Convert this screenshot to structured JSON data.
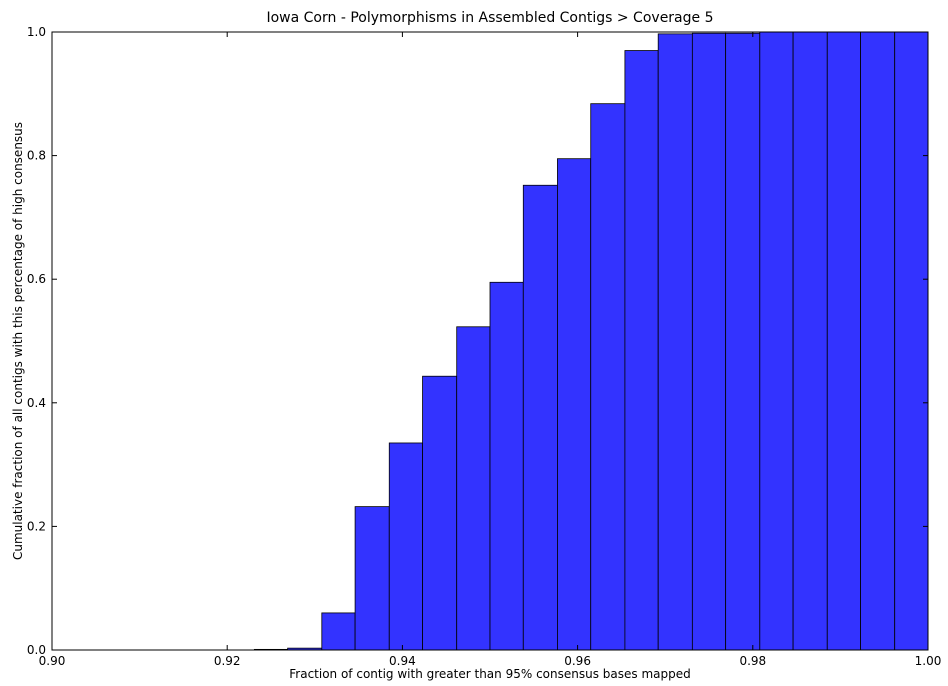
{
  "chart_data": {
    "type": "bar",
    "title": "Iowa Corn - Polymorphisms in Assembled Contigs > Coverage 5",
    "xlabel": "Fraction of contig with greater than 95% consensus bases mapped",
    "ylabel": "Cumulative fraction of all contigs with this percentage of high consensus",
    "xlim": [
      0.9,
      1.0
    ],
    "ylim": [
      0.0,
      1.0
    ],
    "xticks": [
      "0.90",
      "0.92",
      "0.94",
      "0.96",
      "0.98",
      "1.00"
    ],
    "yticks": [
      "0.0",
      "0.2",
      "0.4",
      "0.6",
      "0.8",
      "1.0"
    ],
    "bar_color": "#3333ff",
    "grid": false,
    "cumulative": true,
    "bins": [
      {
        "x0": 0.9,
        "x1": 0.9038,
        "value": 0.0
      },
      {
        "x0": 0.9038,
        "x1": 0.9077,
        "value": 0.0
      },
      {
        "x0": 0.9077,
        "x1": 0.9115,
        "value": 0.0
      },
      {
        "x0": 0.9115,
        "x1": 0.9154,
        "value": 0.0
      },
      {
        "x0": 0.9154,
        "x1": 0.9192,
        "value": 0.0
      },
      {
        "x0": 0.9192,
        "x1": 0.9231,
        "value": 0.0
      },
      {
        "x0": 0.9231,
        "x1": 0.9269,
        "value": 0.001
      },
      {
        "x0": 0.9269,
        "x1": 0.9308,
        "value": 0.003
      },
      {
        "x0": 0.9308,
        "x1": 0.9346,
        "value": 0.06
      },
      {
        "x0": 0.9346,
        "x1": 0.9385,
        "value": 0.232
      },
      {
        "x0": 0.9385,
        "x1": 0.9423,
        "value": 0.335
      },
      {
        "x0": 0.9423,
        "x1": 0.9462,
        "value": 0.443
      },
      {
        "x0": 0.9462,
        "x1": 0.95,
        "value": 0.523
      },
      {
        "x0": 0.95,
        "x1": 0.9538,
        "value": 0.595
      },
      {
        "x0": 0.9538,
        "x1": 0.9577,
        "value": 0.752
      },
      {
        "x0": 0.9577,
        "x1": 0.9615,
        "value": 0.795
      },
      {
        "x0": 0.9615,
        "x1": 0.9654,
        "value": 0.884
      },
      {
        "x0": 0.9654,
        "x1": 0.9692,
        "value": 0.97
      },
      {
        "x0": 0.9692,
        "x1": 0.9731,
        "value": 0.997
      },
      {
        "x0": 0.9731,
        "x1": 0.9769,
        "value": 0.998
      },
      {
        "x0": 0.9769,
        "x1": 0.9808,
        "value": 0.998
      },
      {
        "x0": 0.9808,
        "x1": 0.9846,
        "value": 1.0
      },
      {
        "x0": 0.9846,
        "x1": 0.9885,
        "value": 1.0
      },
      {
        "x0": 0.9885,
        "x1": 0.9923,
        "value": 1.0
      },
      {
        "x0": 0.9923,
        "x1": 0.9962,
        "value": 1.0
      },
      {
        "x0": 0.9962,
        "x1": 1.0,
        "value": 1.0
      }
    ]
  }
}
